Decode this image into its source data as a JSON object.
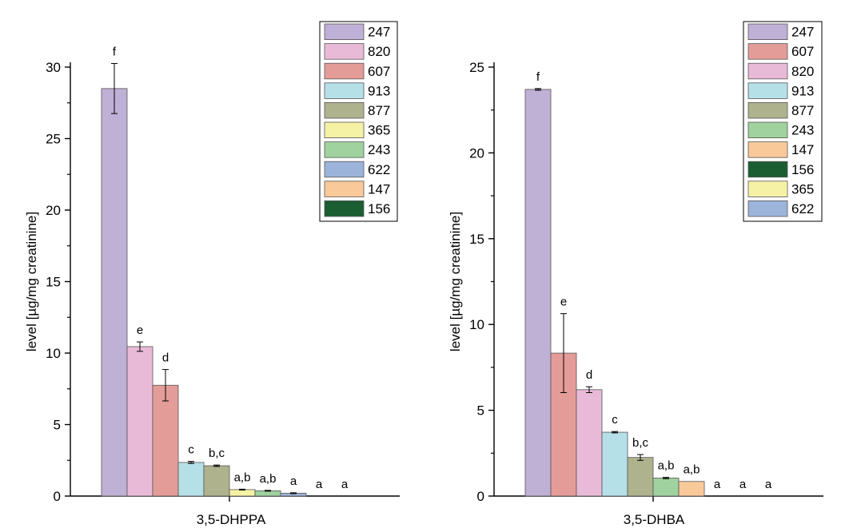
{
  "chart_data": [
    {
      "type": "bar",
      "x_category": "3,5-DHPPA",
      "ylabel": "level [µg/mg creatinine]",
      "ylim": [
        0,
        30
      ],
      "yticks": [
        0,
        5,
        10,
        15,
        20,
        25,
        30
      ],
      "legend_position": "top-right",
      "series": [
        {
          "name": "247",
          "value": 28.5,
          "err": 1.75,
          "sig": "f",
          "color": "#bfb0d6"
        },
        {
          "name": "820",
          "value": 10.45,
          "err": 0.33,
          "sig": "e",
          "color": "#e9bad7"
        },
        {
          "name": "607",
          "value": 7.75,
          "err": 1.1,
          "sig": "d",
          "color": "#e49c98"
        },
        {
          "name": "913",
          "value": 2.35,
          "err": 0.07,
          "sig": "c",
          "color": "#b6e0e8"
        },
        {
          "name": "877",
          "value": 2.12,
          "err": 0.05,
          "sig": "b,c",
          "color": "#aeb38e"
        },
        {
          "name": "365",
          "value": 0.45,
          "err": 0.03,
          "sig": "a,b",
          "color": "#f5f2a6"
        },
        {
          "name": "243",
          "value": 0.37,
          "err": 0.03,
          "sig": "a,b",
          "color": "#9fd29f"
        },
        {
          "name": "622",
          "value": 0.2,
          "err": 0.03,
          "sig": "a",
          "color": "#9db4da"
        },
        {
          "name": "147",
          "value": 0,
          "err": 0,
          "sig": "a",
          "color": "#f9c99a"
        },
        {
          "name": "156",
          "value": 0,
          "err": 0,
          "sig": "a",
          "color": "#1a5e32"
        }
      ]
    },
    {
      "type": "bar",
      "x_category": "3,5-DHBA",
      "ylabel": "level [µg/mg creatinine]",
      "ylim": [
        0,
        25
      ],
      "yticks": [
        0,
        5,
        10,
        15,
        20,
        25
      ],
      "legend_position": "top-right",
      "series": [
        {
          "name": "247",
          "value": 23.7,
          "err": 0.05,
          "sig": "f",
          "color": "#bfb0d6"
        },
        {
          "name": "607",
          "value": 8.33,
          "err": 2.3,
          "sig": "e",
          "color": "#e49c98"
        },
        {
          "name": "820",
          "value": 6.2,
          "err": 0.17,
          "sig": "d",
          "color": "#e9bad7"
        },
        {
          "name": "913",
          "value": 3.72,
          "err": 0.04,
          "sig": "c",
          "color": "#b6e0e8"
        },
        {
          "name": "877",
          "value": 2.25,
          "err": 0.17,
          "sig": "b,c",
          "color": "#aeb38e"
        },
        {
          "name": "243",
          "value": 1.05,
          "err": 0.04,
          "sig": "a,b",
          "color": "#9fd29f"
        },
        {
          "name": "147",
          "value": 0.85,
          "err": 0,
          "sig": "a,b",
          "color": "#f9c99a"
        },
        {
          "name": "156",
          "value": 0,
          "err": 0,
          "sig": "a",
          "color": "#1a5e32"
        },
        {
          "name": "365",
          "value": 0,
          "err": 0,
          "sig": "a",
          "color": "#f5f2a6"
        },
        {
          "name": "622",
          "value": 0,
          "err": 0,
          "sig": "a",
          "color": "#9db4da"
        }
      ]
    }
  ]
}
